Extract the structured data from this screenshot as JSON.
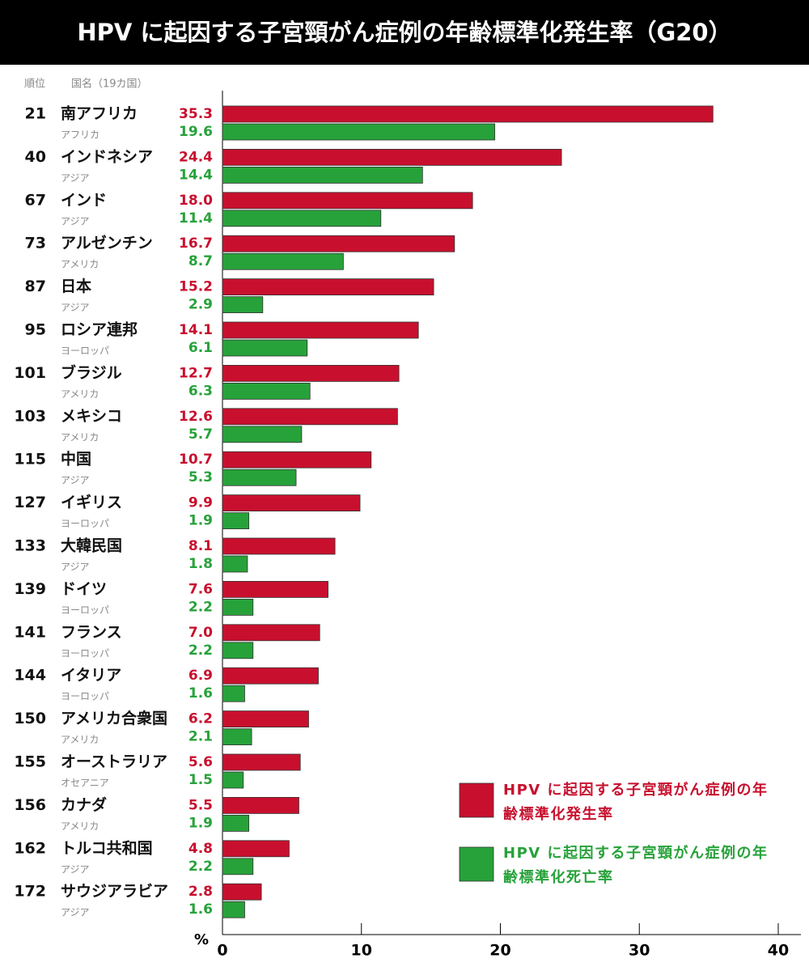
{
  "chart_data": {
    "type": "bar",
    "orientation": "horizontal",
    "title": "HPV に起因する子宮頸がん症例の年齢標準化発生率（G20）",
    "rank_header": "順位",
    "country_header": "国名（19カ国）",
    "categories": [
      "南アフリカ",
      "インドネシア",
      "インド",
      "アルゼンチン",
      "日本",
      "ロシア連邦",
      "ブラジル",
      "メキシコ",
      "中国",
      "イギリス",
      "大韓民国",
      "ドイツ",
      "フランス",
      "イタリア",
      "アメリカ合衆国",
      "オーストラリア",
      "カナダ",
      "トルコ共和国",
      "サウジアラビア"
    ],
    "ranks": [
      21,
      40,
      67,
      73,
      87,
      95,
      101,
      103,
      115,
      127,
      133,
      139,
      141,
      144,
      150,
      155,
      156,
      162,
      172
    ],
    "regions": [
      "アフリカ",
      "アジア",
      "アジア",
      "アメリカ",
      "アジア",
      "ヨーロッパ",
      "アメリカ",
      "アメリカ",
      "アジア",
      "ヨーロッパ",
      "アジア",
      "ヨーロッパ",
      "ヨーロッパ",
      "ヨーロッパ",
      "アメリカ",
      "オセアニア",
      "アメリカ",
      "アジア",
      "アジア"
    ],
    "series": [
      {
        "name": "HPV に起因する子宮頸がん症例の年齢標準化発生率",
        "color": "#c8102e",
        "values": [
          35.3,
          24.4,
          18.0,
          16.7,
          15.2,
          14.1,
          12.7,
          12.6,
          10.7,
          9.9,
          8.1,
          7.6,
          7.0,
          6.9,
          6.2,
          5.6,
          5.5,
          4.8,
          2.8
        ],
        "value_labels": [
          "35.3",
          "24.4",
          "18.0",
          "16.7",
          "15.2",
          "14.1",
          "12.7",
          "12.6",
          "10.7",
          "9.9",
          "8.1",
          "7.6",
          "7.0",
          "6.9",
          "6.2",
          "5.6",
          "5.5",
          "4.8",
          "2.8"
        ]
      },
      {
        "name": "HPV に起因する子宮頸がん症例の年齢標準化死亡率",
        "color": "#27a23a",
        "values": [
          19.6,
          14.4,
          11.4,
          8.7,
          2.9,
          6.1,
          6.3,
          5.7,
          5.3,
          1.9,
          1.8,
          2.2,
          2.2,
          1.6,
          2.1,
          1.5,
          1.9,
          2.2,
          1.6
        ],
        "value_labels": [
          "19.6",
          "14.4",
          "11.4",
          "8.7",
          "2.9",
          "6.1",
          "6.3",
          "5.7",
          "5.3",
          "1.9",
          "1.8",
          "2.2",
          "2.2",
          "1.6",
          "2.1",
          "1.5",
          "1.9",
          "2.2",
          "1.6"
        ]
      }
    ],
    "x_label": "%",
    "xlim": [
      0,
      40
    ],
    "xticks": [
      0,
      10,
      20,
      30,
      40
    ]
  }
}
